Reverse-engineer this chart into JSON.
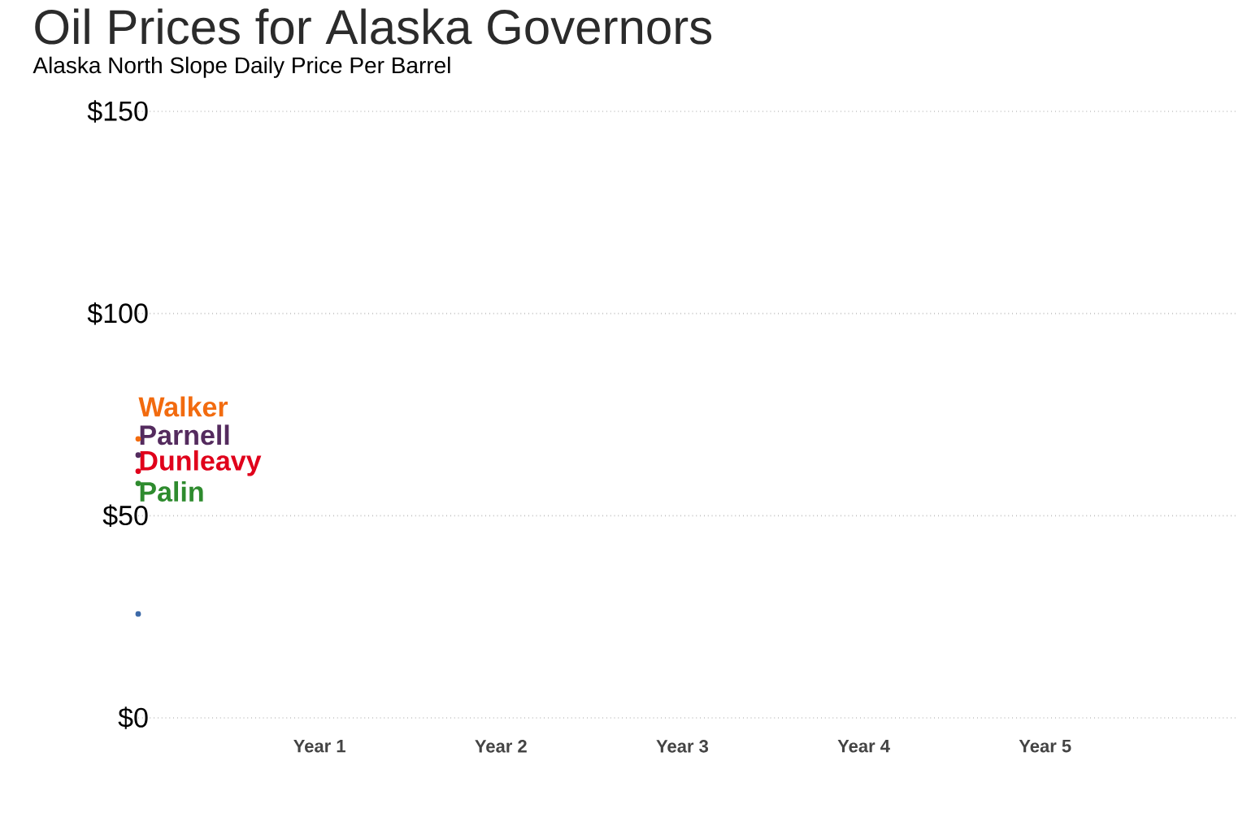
{
  "chart_data": {
    "type": "line",
    "title": "Oil Prices for Alaska Governors",
    "subtitle": "Alaska North Slope Daily Price Per Barrel",
    "categories": [
      null,
      "Year 1",
      "Year 2",
      "Year 3",
      "Year 4",
      "Year 5",
      null
    ],
    "ylim": [
      0,
      150
    ],
    "yticks": [
      {
        "value": 0,
        "label": "$0"
      },
      {
        "value": 50,
        "label": "$50"
      },
      {
        "value": 100,
        "label": "$100"
      },
      {
        "value": 150,
        "label": "$150"
      }
    ],
    "grid": "y",
    "legend": false,
    "line_style": "solid",
    "marker": "circle",
    "series": [
      {
        "name": "Walker",
        "color": "#f26b0f",
        "values": [
          69,
          null,
          null,
          null,
          null,
          null,
          null
        ]
      },
      {
        "name": "Dunleavy",
        "color": "#e0001b",
        "values": [
          61,
          null,
          null,
          null,
          null,
          null,
          null
        ]
      },
      {
        "name": "Parnell",
        "color": "#542b5e",
        "values": [
          65,
          null,
          null,
          null,
          null,
          null,
          null
        ]
      },
      {
        "name": "Palin",
        "color": "#2e8b2e",
        "values": [
          58,
          null,
          null,
          null,
          null,
          null,
          null
        ]
      },
      {
        "color": "#3d6aa8",
        "values": [
          25.7,
          null,
          null,
          null,
          null,
          null,
          null
        ]
      }
    ]
  }
}
